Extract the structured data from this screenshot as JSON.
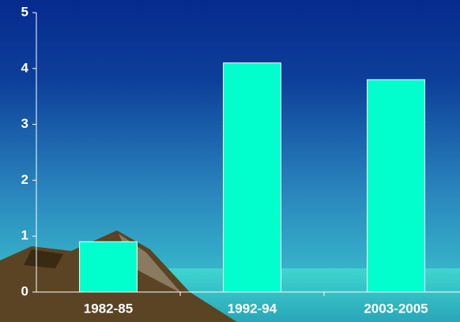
{
  "chart_data": {
    "type": "bar",
    "categories": [
      "1982-85",
      "1992-94",
      "2003-2005"
    ],
    "values": [
      0.9,
      4.1,
      3.8
    ],
    "color": "#00ffcc",
    "ylim": [
      0,
      5
    ],
    "yticks": [
      0,
      1,
      2,
      3,
      4,
      5
    ]
  }
}
